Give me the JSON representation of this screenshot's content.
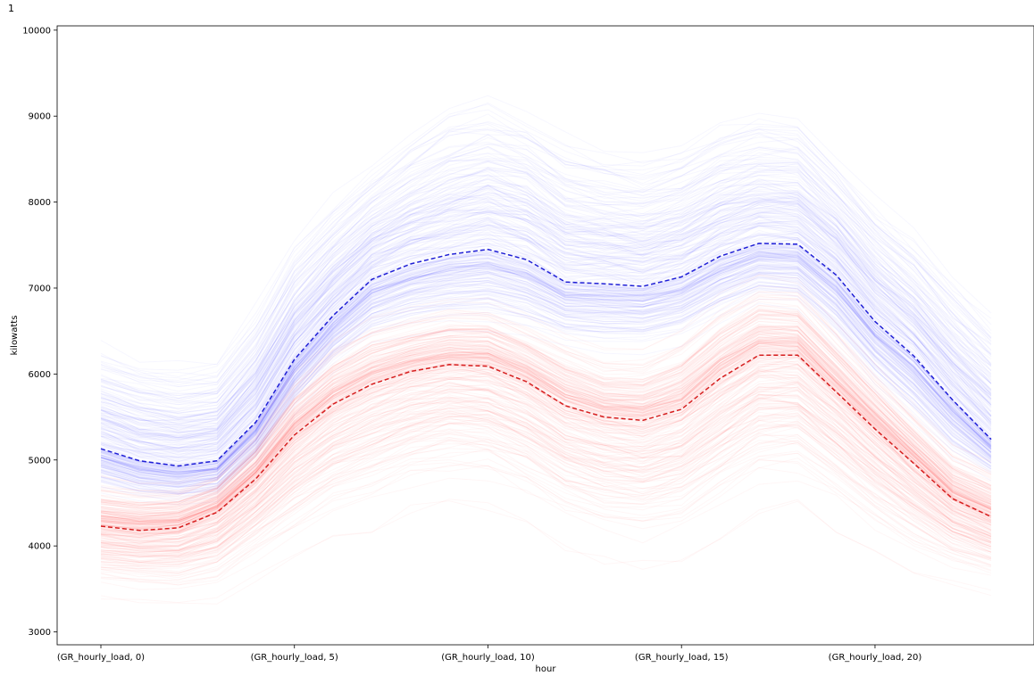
{
  "cell_label": "1",
  "chart_data": {
    "type": "line",
    "xlabel": "hour",
    "ylabel": "kilowatts",
    "ylim": [
      2850,
      10050
    ],
    "yticks": [
      3000,
      4000,
      5000,
      6000,
      7000,
      8000,
      9000,
      10000
    ],
    "x": [
      0,
      1,
      2,
      3,
      4,
      5,
      6,
      7,
      8,
      9,
      10,
      11,
      12,
      13,
      14,
      15,
      16,
      17,
      18,
      19,
      20,
      21,
      22,
      23
    ],
    "xticks": [
      {
        "x": 0,
        "label": "(GR_hourly_load, 0)"
      },
      {
        "x": 5,
        "label": "(GR_hourly_load, 5)"
      },
      {
        "x": 10,
        "label": "(GR_hourly_load, 10)"
      },
      {
        "x": 15,
        "label": "(GR_hourly_load, 15)"
      },
      {
        "x": 20,
        "label": "(GR_hourly_load, 20)"
      }
    ],
    "grid": false,
    "series": [
      {
        "color": "#0000ff",
        "style": "dashed",
        "values": [
          5130,
          4990,
          4930,
          4990,
          5440,
          6170,
          6680,
          7100,
          7280,
          7390,
          7450,
          7330,
          7070,
          7050,
          7020,
          7130,
          7370,
          7520,
          7510,
          7150,
          6610,
          6210,
          5700,
          5240
        ],
        "band_min": [
          4550,
          4450,
          4400,
          4450,
          4850,
          5450,
          5950,
          6250,
          6350,
          6400,
          6400,
          6300,
          6200,
          6150,
          6150,
          6250,
          6500,
          6700,
          6650,
          6200,
          5700,
          5300,
          4900,
          4700
        ],
        "band_max": [
          6650,
          6500,
          6400,
          6450,
          7100,
          7900,
          8400,
          8800,
          9200,
          9550,
          9700,
          9550,
          9200,
          9050,
          8950,
          9100,
          9350,
          9450,
          9400,
          8900,
          8400,
          8000,
          7500,
          7100
        ]
      },
      {
        "color": "#ff0000",
        "style": "dashed",
        "values": [
          4230,
          4180,
          4210,
          4390,
          4780,
          5290,
          5650,
          5880,
          6030,
          6110,
          6090,
          5910,
          5630,
          5500,
          5460,
          5590,
          5950,
          6220,
          6220,
          5790,
          5360,
          4960,
          4550,
          4340
        ],
        "band_min": [
          3350,
          3300,
          3250,
          3300,
          3550,
          3750,
          3950,
          4100,
          4300,
          4400,
          4350,
          4150,
          3900,
          3700,
          3650,
          3750,
          4000,
          4300,
          4350,
          4100,
          3800,
          3600,
          3500,
          3400
        ],
        "band_max": [
          4850,
          4800,
          4800,
          4950,
          5450,
          6100,
          6500,
          6750,
          6850,
          6950,
          6950,
          6750,
          6550,
          6350,
          6350,
          6600,
          7000,
          7250,
          7200,
          6700,
          6200,
          5700,
          5250,
          5050
        ]
      }
    ]
  }
}
